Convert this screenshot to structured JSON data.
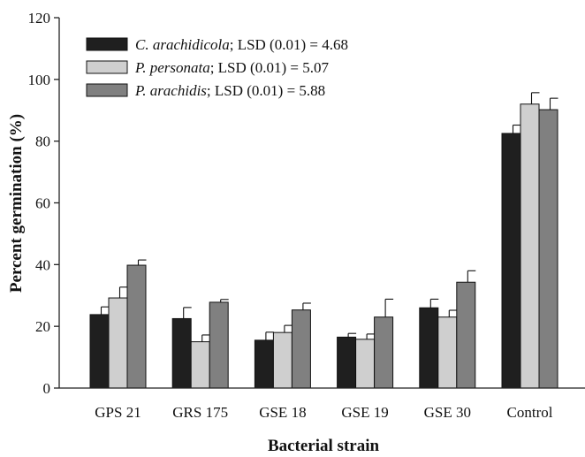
{
  "chart_data": {
    "type": "bar",
    "xlabel": "Bacterial strain",
    "ylabel": "Percent germination (%)",
    "ylim": [
      0,
      120
    ],
    "yticks": [
      0,
      20,
      40,
      60,
      80,
      100,
      120
    ],
    "categories": [
      "GPS 21",
      "GRS 175",
      "GSE 18",
      "GSE 19",
      "GSE 30",
      "Control"
    ],
    "series": [
      {
        "name": "C. arachidicola",
        "legend_suffix": "; LSD (0.01) = 4.68",
        "color": "#1f1f1f",
        "values": [
          23.8,
          22.5,
          15.5,
          16.5,
          26.0,
          82.5
        ],
        "errors": [
          2.5,
          3.6,
          2.6,
          1.2,
          2.8,
          2.7
        ]
      },
      {
        "name": "P. personata",
        "legend_suffix": "; LSD (0.01) = 5.07",
        "color": "#cfcfcf",
        "values": [
          29.2,
          15.0,
          18.0,
          15.8,
          23.0,
          92.0
        ],
        "errors": [
          3.5,
          2.2,
          2.3,
          1.7,
          2.2,
          3.7
        ]
      },
      {
        "name": "P. arachidis",
        "legend_suffix": "; LSD (0.01) = 5.88",
        "color": "#808080",
        "values": [
          39.8,
          27.8,
          25.3,
          23.0,
          34.3,
          90.2
        ],
        "errors": [
          1.7,
          0.9,
          2.2,
          5.8,
          3.7,
          3.7
        ]
      }
    ],
    "grid": false,
    "legend_position": "top-left"
  }
}
